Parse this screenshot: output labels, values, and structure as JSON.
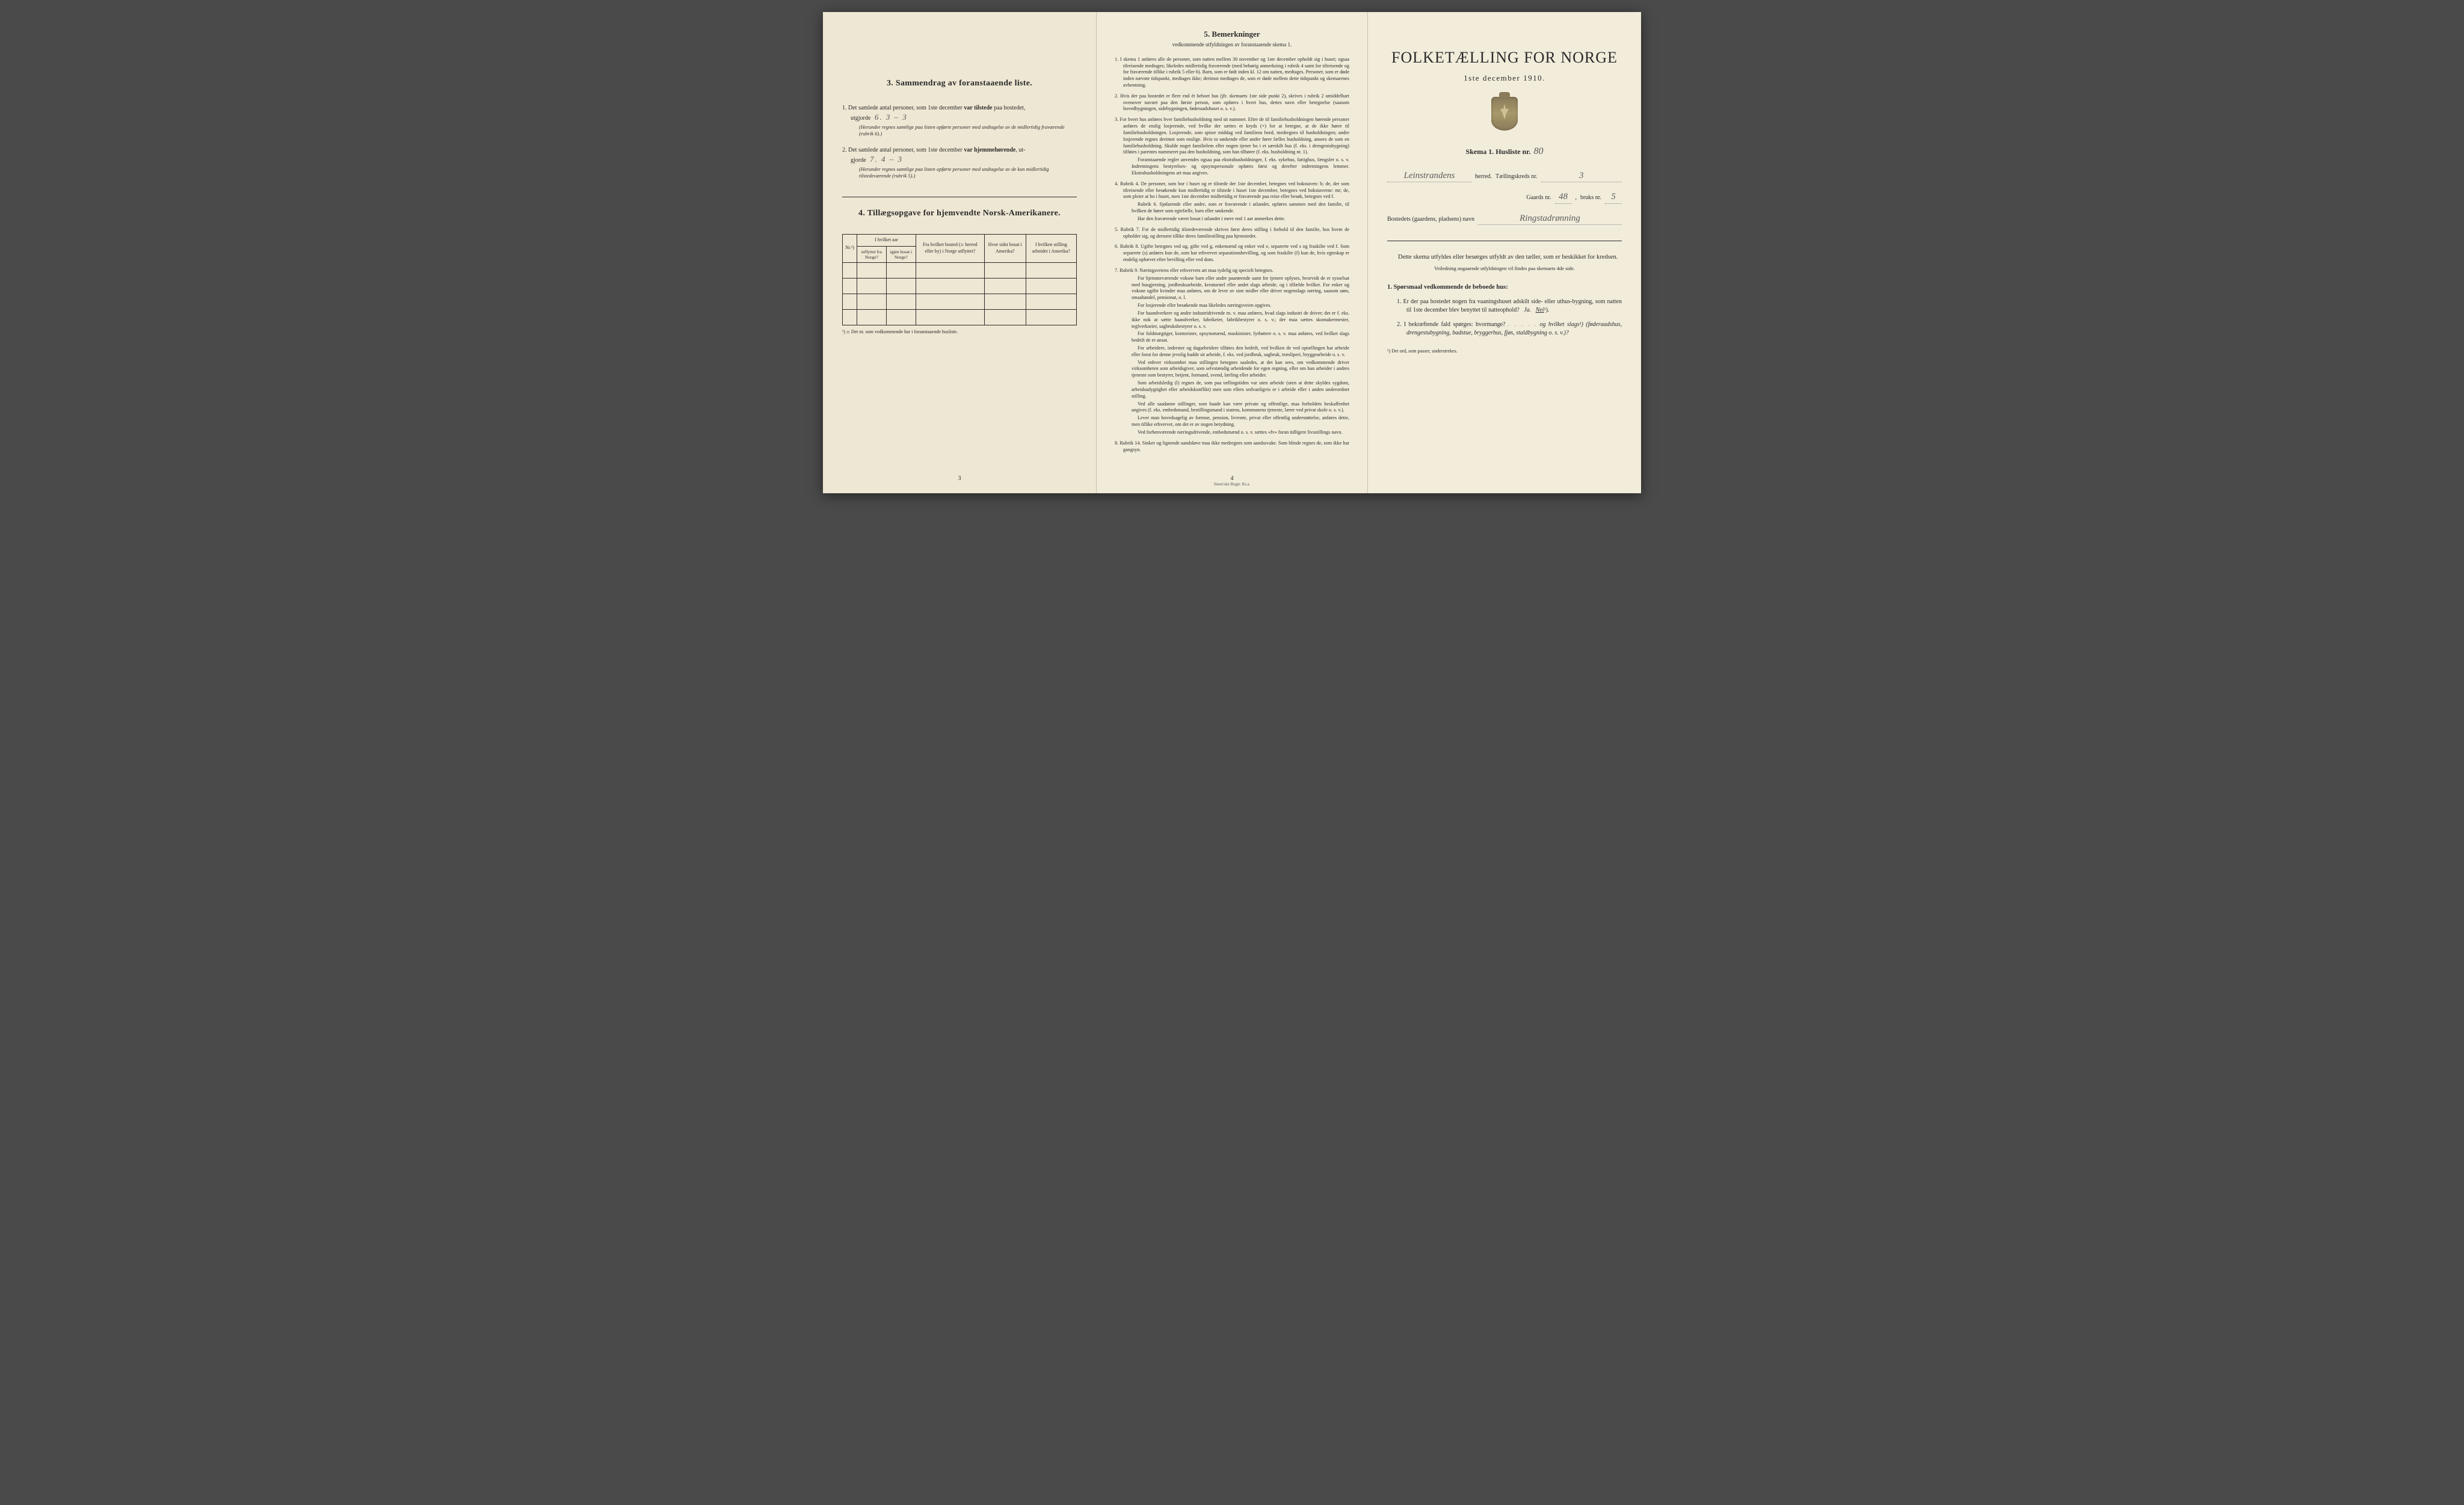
{
  "colors": {
    "paper": "#f0ead8",
    "text": "#2a2a2a",
    "handwriting": "#555555",
    "background": "#4a4a4a"
  },
  "page1": {
    "section3_title": "3.   Sammendrag av foranstaaende liste.",
    "item1_prefix": "1.  Det samlede antal personer, som 1ste december ",
    "item1_bold": "var tilstede",
    "item1_suffix": " paa bostedet,",
    "item1_line2_prefix": "utgjorde ",
    "item1_value": "6.     3 – 3",
    "item1_note": "(Herunder regnes samtlige paa listen opførte personer med undtagelse av de midlertidig fraværende (rubrik 6).)",
    "item2_prefix": "2.  Det samlede antal personer, som 1ste december ",
    "item2_bold": "var hjemmehørende",
    "item2_suffix": ", ut-",
    "item2_line2_prefix": "gjorde ",
    "item2_value": "7.     4 – 3",
    "item2_note": "(Herunder regnes samtlige paa listen opførte personer med undtagelse av de kun midlertidig tilstedeværende (rubrik 5).)",
    "section4_title": "4.   Tillægsopgave for hjemvendte Norsk-Amerikanere.",
    "table": {
      "head_nr": "Nr.¹)",
      "head_aar_group": "I hvilket aar",
      "head_utflyttet": "utflyttet fra Norge?",
      "head_igjen": "igjen bosat i Norge?",
      "head_bosted": "Fra hvilket bosted (ɔ: herred eller by) i Norge utflyttet?",
      "head_amerika": "Hvor sidst bosat i Amerika?",
      "head_stilling": "I hvilken stilling arbeidet i Amerika?",
      "blank_rows": 4
    },
    "footnote": "¹) ɔ: Det nr. som vedkommende har i foranstaaende husliste.",
    "page_number": "3"
  },
  "page2": {
    "heading": "5.   Bemerkninger",
    "subheading": "vedkommende utfyldningen av foranstaaende skema 1.",
    "items": [
      {
        "num": "1.",
        "text": "I skema 1 anføres alle de personer, som natten mellem 30 november og 1ste december opholdt sig i huset; ogsaa tilreisende medtages; likeledes midlertidig fraværende (med behørig anmerkning i rubrik 4 samt for tilreisende og for fraværende tillike i rubrik 5 eller 6). Barn, som er født inden kl. 12 om natten, medtages. Personer, som er døde inden nævnte tidspunkt, medtages ikke; derimot medtages de, som er døde mellem dette tidspunkt og skemaernes avhentning."
      },
      {
        "num": "2.",
        "text": "Hvis der paa bostedet er flere end ét beboet hus (jfr. skemaets 1ste side punkt 2), skrives i rubrik 2 umiddelbart ovenover navnet paa den første person, som opføres i hvert hus, dettes navn eller betegnelse (saasom hovedbygningen, sidebygningen, føderaadshuset o. s. v.)."
      },
      {
        "num": "3.",
        "text": "For hvert hus anføres hver familiehusholdning med sit nummer. Efter de til familiehusholdningen hørende personer anføres de enslig losjerende, ved hvilke der sættes et kryds (×) for at betegne, at de ikke hører til familiehusholdningen. Losjerende, som spiser middag ved familiens bord, medregnes til husholdningen; andre losjerende regnes derimot som enslige. Hvis to søskende eller andre fører fælles husholdning, ansees de som en familiehusholdning. Skulde noget familielem eller nogen tjener bo i et særskilt hus (f. eks. i drengestubygning) tilføies i parentes nummeret paa den husholdning, som han tilhører (f. eks. husholdning nr. 1).",
        "paras": [
          "Foranstaaende regler anvendes ogsaa paa ekstrahusholdninger, f. eks. sykehus, fattighus, fængsler o. s. v. Indretningens bestyrelses- og opsynspersonale opføres først og derefter indretningens lemmer. Ekstrahusholdningens art maa angives."
        ]
      },
      {
        "num": "4.",
        "text": "Rubrik 4. De personer, som bor i huset og er tilstede der 1ste december, betegnes ved bokstaven: b; de, der som tilreisende eller besøkende kun midlertidig er tilstede i huset 1ste december, betegnes ved bokstaverne: mt; de, som pleier at bo i huset, men 1ste december midlertidig er fraværende paa reise eller besøk, betegnes ved f.",
        "paras": [
          "Rubrik 6. Sjøfarende eller andre, som er fraværende i utlandet, opføres sammen med den familie, til hvilken de hører som egtefælle, barn eller søskende.",
          "Har den fraværende været bosat i utlandet i mere end 1 aar anmerkes dette."
        ]
      },
      {
        "num": "5.",
        "text": "Rubrik 7. For de midlertidig tilstedeværende skrives først deres stilling i forhold til den familie, hos hvem de opholder sig, og dernæst tillike deres familiestilling paa hjemstedet."
      },
      {
        "num": "6.",
        "text": "Rubrik 8. Ugifte betegnes ved ug, gifte ved g, enkemænd og enker ved e, separerte ved s og fraskilte ved f. Som separerte (s) anføres kun de, som har erhvervet separationsbevilling, og som fraskilte (f) kun de, hvis egteskap er endelig ophævet efter bevilling eller ved dom."
      },
      {
        "num": "7.",
        "text": "Rubrik 9. Næringsveiens eller erhvervets art maa tydelig og specielt betegnes.",
        "paras": [
          "For hjemmeværende voksne barn eller andre paarørende samt for tjenere oplyses, hvorvidt de er sysselsat med husgjerning, jordbruksarbeide, kreaturstel eller andet slags arbeide, og i tilfælde hvilket. For enker og voksne ugifte kvinder maa anføres, om de lever av sine midler eller driver nogenslags næring, saasom søm, smaahandel, pensionat, o. l.",
          "For losjerende eller besøkende maa likeledes næringsveien opgives.",
          "For haandverkere og andre industridrivende m. v. maa anføres, hvad slags industri de driver; det er f. eks. ikke nok at sætte haandverker, fabrikeier, fabrikbestyrer o. s. v.; der maa sættes skomakermester, teglverkseier, sagbruksbestyrer o. s. v.",
          "For fuldmægtiger, kontorister, opsynsmænd, maskinister, fyrbøtere o. s. v. maa anføres, ved hvilket slags bedrift de er ansat.",
          "For arbeidere, inderster og dagarbeidere tilføies den bedrift, ved hvilken de ved optællingen har arbeide eller forut for denne jevnlig hadde sit arbeide, f. eks. ved jordbruk, sagbruk, træsliperi, bryggearbeide o. s. v.",
          "Ved enhver virksomhet maa stillingen betegnes saaledes, at det kan sees, om vedkommende driver virksomheten som arbeidsgiver, som selvstændig arbeidende for egen regning, eller om han arbeider i andres tjeneste som bestyrer, betjent, formand, svend, lærling eller arbeider.",
          "Som arbeidsledig (l) regnes de, som paa tællingstiden var uten arbeide (uten at dette skyldes sygdom, arbeidsudygtighet eller arbeidskonflikt) men som ellers sedvanligvis er i arbeide eller i anden underordnet stilling.",
          "Ved alle saadanne stillinger, som baade kan være private og offentlige, maa forholdets beskaffenhet angives (f. eks. embedsmand, bestillingsmand i statens, kommunens tjeneste, lærer ved privat skole o. s. v.).",
          "Lever man hovedsagelig av formue, pension, livrente, privat eller offentlig understøttelse, anføres dette, men tillike erhvervet, om det er av nogen betydning.",
          "Ved forhenværende næringsdrivende, embedsmænd o. s. v. sættes «fv» foran tidligere livsstillings navn."
        ]
      },
      {
        "num": "8.",
        "text": "Rubrik 14. Sinker og lignende aandsløve maa ikke medregnes som aandssvake. Som blinde regnes de, som ikke har gangsyn."
      }
    ],
    "page_number": "4",
    "printer": "Steen'ske Bogtr.  Kr.a."
  },
  "page3": {
    "title": "FOLKETÆLLING FOR NORGE",
    "date": "1ste december 1910.",
    "skema_label": "Skema 1.   Husliste nr.",
    "husliste_nr": "80",
    "herred_value": "Leinstrandens",
    "herred_label": "herred.",
    "kreds_label": "Tællingskreds nr.",
    "kreds_value": "3",
    "gaards_label": "Gaards nr.",
    "gaards_value": "48",
    "bruks_label": "bruks nr.",
    "bruks_value": "5",
    "bosted_label": "Bostedets (gaardens, pladsens) navn",
    "bosted_value": "Ringstadrønning",
    "body1": "Dette skema utfyldes eller besørges utfyldt av den tæller, som er beskikket for kredsen.",
    "body2": "Veiledning angaaende utfyldningen vil findes paa skemaets 4de side.",
    "q_heading": "1. Spørsmaal vedkommende de beboede hus:",
    "q1_text": "1.  Er der paa bostedet nogen fra vaaningshuset adskilt side- eller uthus-bygning, som natten til 1ste december blev benyttet til natteophold?",
    "q1_ja": "Ja.",
    "q1_nei": "Nei",
    "q1_sup": "¹).",
    "q2_text": "2.  I bekræftende fald spørges: hvormange?",
    "q2_dots": ". . . . .",
    "q2_text2": "og hvilket slags¹) (føderaadshus, drengestubygning, badstue, bryggerhus, fjøs, staldbygning o. s. v.)?",
    "footnote": "¹) Det ord, som passer, understrekes."
  }
}
